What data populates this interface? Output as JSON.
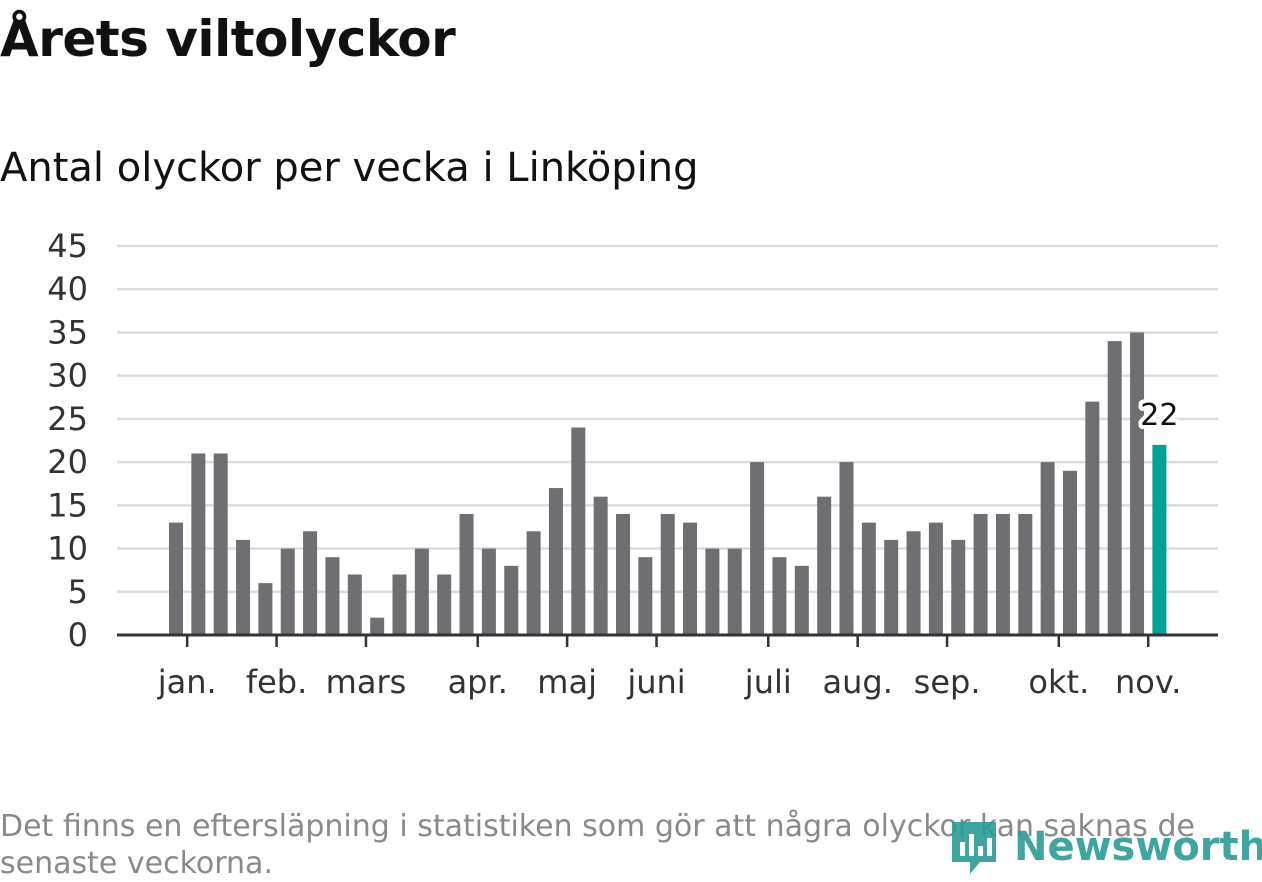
{
  "title": "Årets viltolyckor",
  "subtitle": "Antal olyckor per vecka i Linköping",
  "footnote": "Det finns en eftersläpning i statistiken som gör att några olyckor kan saknas de senaste veckorna.",
  "logo_text": "Newsworthy",
  "colors": {
    "bar": "#6e6e73",
    "highlight": "#00a396",
    "grid": "#dcdcdc",
    "axis": "#333333",
    "logo": "#2a9d95"
  },
  "chart_data": {
    "type": "bar",
    "title": "Antal olyckor per vecka i Linköping",
    "xlabel": "",
    "ylabel": "",
    "ylim": [
      0,
      45
    ],
    "yticks": [
      0,
      5,
      10,
      15,
      20,
      25,
      30,
      35,
      40,
      45
    ],
    "grid": true,
    "values": [
      13,
      21,
      21,
      11,
      6,
      10,
      12,
      9,
      7,
      2,
      7,
      10,
      7,
      14,
      10,
      8,
      12,
      17,
      24,
      16,
      14,
      9,
      14,
      13,
      10,
      10,
      20,
      9,
      8,
      16,
      20,
      13,
      11,
      12,
      13,
      11,
      14,
      14,
      14,
      20,
      19,
      27,
      34,
      35,
      22
    ],
    "highlight_index": 44,
    "highlight_label": "22",
    "month_labels": [
      {
        "label": "jan.",
        "bar_index": 0.5
      },
      {
        "label": "feb.",
        "bar_index": 4.5
      },
      {
        "label": "mars",
        "bar_index": 8.5
      },
      {
        "label": "apr.",
        "bar_index": 13.5
      },
      {
        "label": "maj",
        "bar_index": 17.5
      },
      {
        "label": "juni",
        "bar_index": 21.5
      },
      {
        "label": "juli",
        "bar_index": 26.5
      },
      {
        "label": "aug.",
        "bar_index": 30.5
      },
      {
        "label": "sep.",
        "bar_index": 34.5
      },
      {
        "label": "okt.",
        "bar_index": 39.5
      },
      {
        "label": "nov.",
        "bar_index": 43.5
      }
    ]
  }
}
